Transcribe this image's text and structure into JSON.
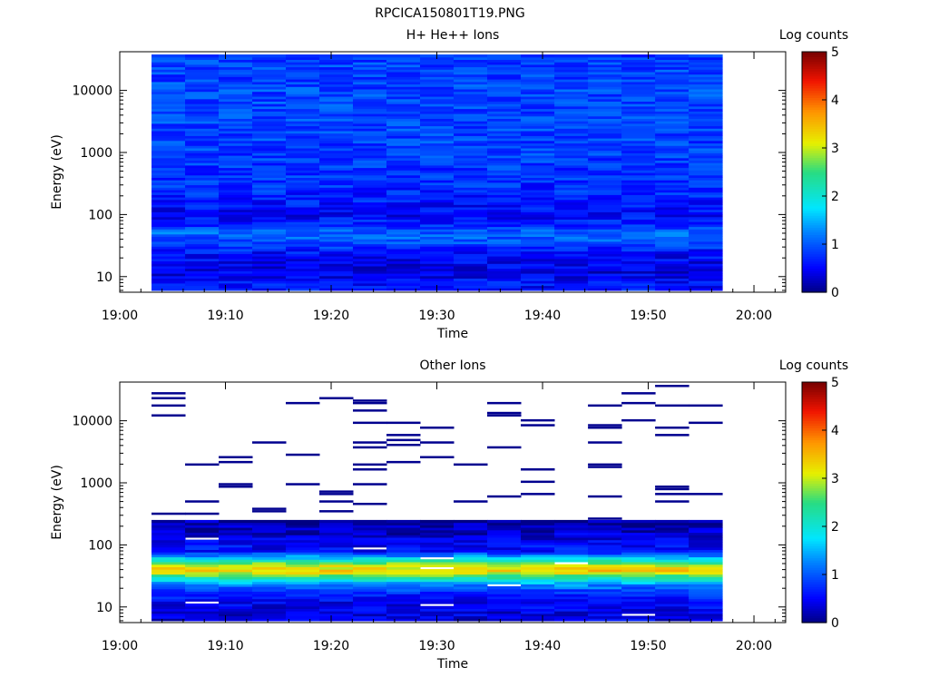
{
  "figure": {
    "title": "RPCICA150801T19.PNG"
  },
  "chart_data": [
    {
      "type": "heatmap",
      "title": "H+ He++ Ions",
      "xlabel": "Time",
      "ylabel": "Energy (eV)",
      "x_ticks": [
        "19:00",
        "19:10",
        "19:20",
        "19:30",
        "19:40",
        "19:50",
        "20:00"
      ],
      "xlim": [
        "19:00",
        "20:03"
      ],
      "y_scale": "log",
      "y_ticks": [
        "10",
        "100",
        "1000",
        "10000"
      ],
      "ylim": [
        5.6,
        42000
      ],
      "data_time_range": [
        "19:03",
        "19:57"
      ],
      "colorbar": {
        "label": "Log counts",
        "ticks": [
          "0",
          "1",
          "2",
          "3",
          "4",
          "5"
        ],
        "range": [
          0,
          5
        ],
        "colormap": "rainbow"
      },
      "energy_profile_log_counts": [
        {
          "energy_eV": 8,
          "log_counts": 0.6
        },
        {
          "energy_eV": 12,
          "log_counts": 0.4
        },
        {
          "energy_eV": 18,
          "log_counts": 0.5
        },
        {
          "energy_eV": 25,
          "log_counts": 0.6
        },
        {
          "energy_eV": 35,
          "log_counts": 0.9
        },
        {
          "energy_eV": 50,
          "log_counts": 1.1
        },
        {
          "energy_eV": 70,
          "log_counts": 0.7
        },
        {
          "energy_eV": 100,
          "log_counts": 0.5
        },
        {
          "energy_eV": 200,
          "log_counts": 0.7
        },
        {
          "energy_eV": 500,
          "log_counts": 0.8
        },
        {
          "energy_eV": 1000,
          "log_counts": 0.85
        },
        {
          "energy_eV": 3000,
          "log_counts": 0.9
        },
        {
          "energy_eV": 10000,
          "log_counts": 0.9
        },
        {
          "energy_eV": 35000,
          "log_counts": 0.85
        }
      ]
    },
    {
      "type": "heatmap",
      "title": "Other Ions",
      "xlabel": "Time",
      "ylabel": "Energy (eV)",
      "x_ticks": [
        "19:00",
        "19:10",
        "19:20",
        "19:30",
        "19:40",
        "19:50",
        "20:00"
      ],
      "xlim": [
        "19:00",
        "20:03"
      ],
      "y_scale": "log",
      "y_ticks": [
        "10",
        "100",
        "1000",
        "10000"
      ],
      "ylim": [
        5.6,
        42000
      ],
      "data_time_range": [
        "19:03",
        "19:57"
      ],
      "colorbar": {
        "label": "Log counts",
        "ticks": [
          "0",
          "1",
          "2",
          "3",
          "4",
          "5"
        ],
        "range": [
          0,
          5
        ],
        "colormap": "rainbow"
      },
      "energy_profile_log_counts": [
        {
          "energy_eV": 8,
          "log_counts": 0.4
        },
        {
          "energy_eV": 12,
          "log_counts": 0.5
        },
        {
          "energy_eV": 18,
          "log_counts": 0.8
        },
        {
          "energy_eV": 24,
          "log_counts": 1.4
        },
        {
          "energy_eV": 30,
          "log_counts": 2.2
        },
        {
          "energy_eV": 38,
          "log_counts": 3.4
        },
        {
          "energy_eV": 48,
          "log_counts": 3.0
        },
        {
          "energy_eV": 60,
          "log_counts": 1.8
        },
        {
          "energy_eV": 80,
          "log_counts": 0.6
        },
        {
          "energy_eV": 150,
          "log_counts": 0.3
        },
        {
          "energy_eV": 250,
          "log_counts": 0.1
        },
        {
          "energy_eV": 1000,
          "log_counts": 0.05
        },
        {
          "energy_eV": 10000,
          "log_counts": 0.05
        }
      ],
      "sparse_above_eV": 250
    }
  ]
}
